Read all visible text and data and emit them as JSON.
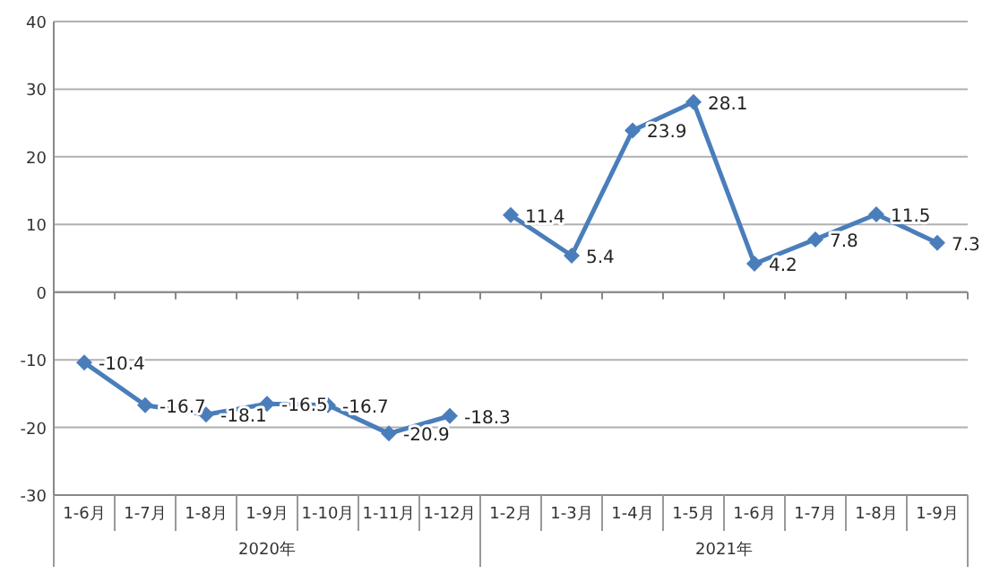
{
  "chart_data": {
    "type": "line",
    "categories": [
      "1-6月",
      "1-7月",
      "1-8月",
      "1-9月",
      "1-10月",
      "1-11月",
      "1-12月",
      "1-2月",
      "1-3月",
      "1-4月",
      "1-5月",
      "1-6月",
      "1-7月",
      "1-8月",
      "1-9月"
    ],
    "series": [
      {
        "color": "#4a7ebb",
        "values": [
          -10.4,
          -16.7,
          -18.1,
          -16.5,
          -16.7,
          -20.9,
          -18.3,
          null,
          null,
          null,
          null,
          null,
          null,
          null,
          null
        ]
      },
      {
        "color": "#4a7ebb",
        "values": [
          null,
          null,
          null,
          null,
          null,
          null,
          null,
          11.4,
          5.4,
          23.9,
          28.1,
          4.2,
          7.8,
          11.5,
          7.3
        ]
      }
    ],
    "annotations": [
      "2020年",
      "2021年"
    ],
    "ylim": [
      -30,
      40
    ],
    "yticks": [
      -30,
      -20,
      -10,
      0,
      10,
      20,
      30,
      40
    ],
    "grid": "y",
    "marker": "diamond",
    "line_style": "solid",
    "data_labels": true
  }
}
